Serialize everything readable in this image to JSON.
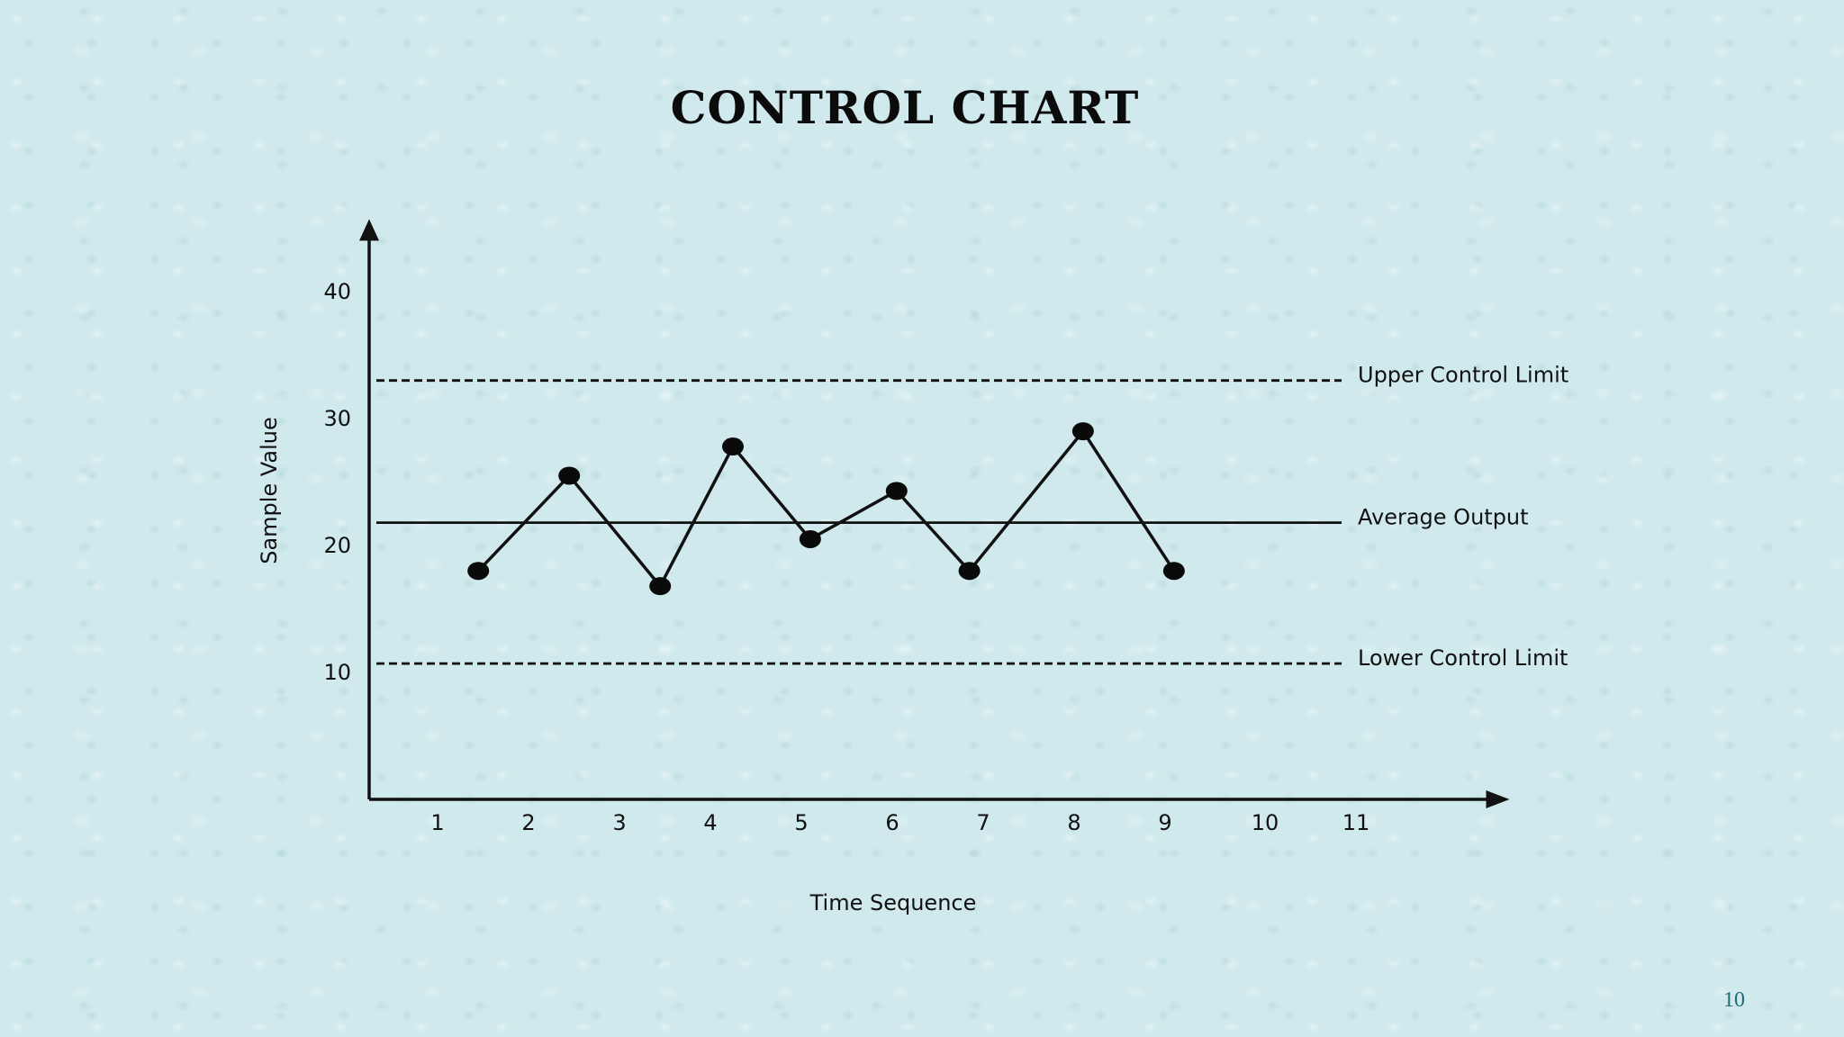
{
  "slide": {
    "title": "CONTROL CHART",
    "page_number": "10"
  },
  "chart_data": {
    "type": "line",
    "title": "CONTROL CHART",
    "xlabel": "Time Sequence",
    "ylabel": "Sample Value",
    "x_ticks": [
      1,
      2,
      3,
      4,
      5,
      6,
      7,
      8,
      9,
      10,
      11
    ],
    "y_ticks": [
      10,
      20,
      30,
      40
    ],
    "xlim": [
      0,
      12.5
    ],
    "ylim": [
      0,
      46
    ],
    "grid": false,
    "series": [
      {
        "points": [
          {
            "x": 1.2,
            "y": 18
          },
          {
            "x": 2.2,
            "y": 25.5
          },
          {
            "x": 3.2,
            "y": 16.8
          },
          {
            "x": 4.0,
            "y": 27.8
          },
          {
            "x": 4.85,
            "y": 20.5
          },
          {
            "x": 5.8,
            "y": 24.3
          },
          {
            "x": 6.6,
            "y": 18
          },
          {
            "x": 7.85,
            "y": 29
          },
          {
            "x": 8.85,
            "y": 18
          }
        ]
      }
    ],
    "reference_lines": [
      {
        "name": "Upper Control Limit",
        "y": 33,
        "style": "dashed"
      },
      {
        "name": "Average Output",
        "y": 21.8,
        "style": "solid"
      },
      {
        "name": "Lower Control Limit",
        "y": 10.7,
        "style": "dashed"
      }
    ]
  }
}
